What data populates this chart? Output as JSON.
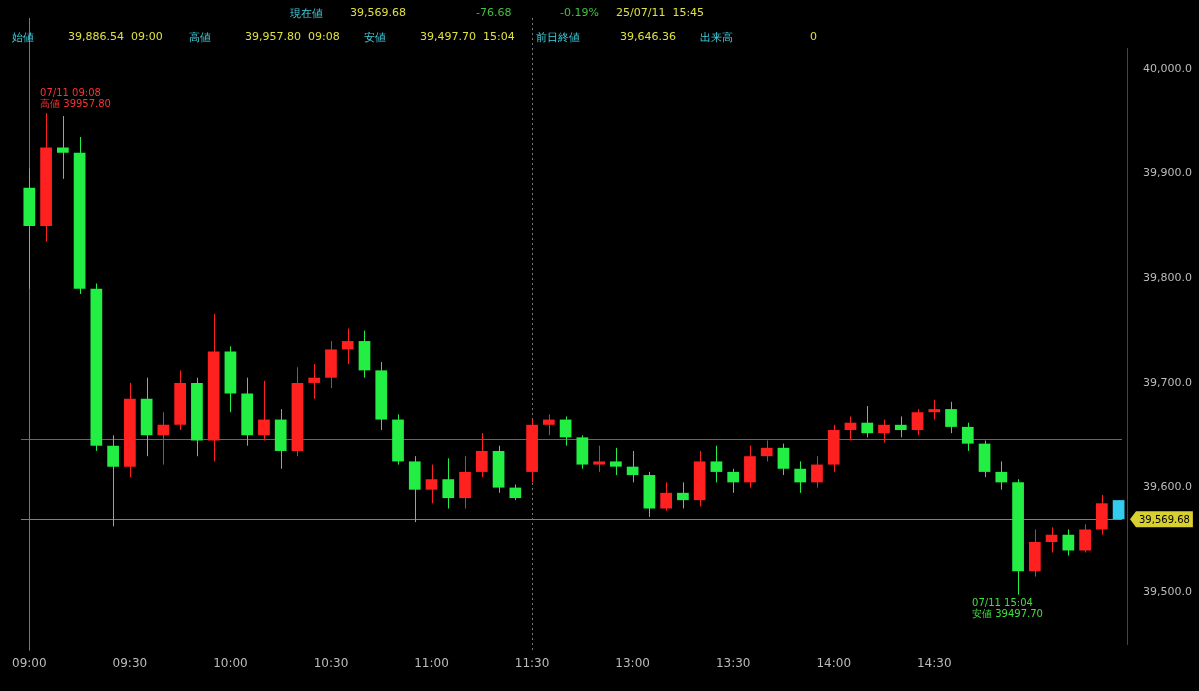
{
  "chart_data": {
    "type": "candlestick",
    "categories": [
      "09:00",
      null,
      null,
      null,
      null,
      null,
      "09:30",
      null,
      null,
      null,
      null,
      null,
      "10:00",
      null,
      null,
      null,
      null,
      null,
      "10:30",
      null,
      null,
      null,
      null,
      null,
      "11:00",
      null,
      null,
      null,
      null,
      null,
      "11:30",
      null,
      null,
      null,
      null,
      null,
      "13:00",
      null,
      null,
      null,
      null,
      null,
      "13:30",
      null,
      null,
      null,
      null,
      null,
      "14:00",
      null,
      null,
      null,
      null,
      null,
      "14:30",
      null,
      null,
      null,
      null,
      null,
      null,
      null,
      null,
      null,
      null,
      null
    ],
    "ohlc": [
      [
        39886.54,
        39905,
        39790,
        39850
      ],
      [
        39850,
        39957.8,
        39835,
        39925
      ],
      [
        39925,
        39955,
        39895,
        39920
      ],
      [
        39920,
        39935,
        39785,
        39790
      ],
      [
        39790,
        39795,
        39635,
        39640
      ],
      [
        39640,
        39650,
        39563,
        39620
      ],
      [
        39620,
        39700,
        39610,
        39685
      ],
      [
        39685,
        39705,
        39630,
        39650
      ],
      [
        39650,
        39672,
        39622,
        39660
      ],
      [
        39660,
        39712,
        39655,
        39700
      ],
      [
        39700,
        39705,
        39630,
        39645
      ],
      [
        39645,
        39766,
        39625,
        39730
      ],
      [
        39730,
        39735,
        39672,
        39690
      ],
      [
        39690,
        39705,
        39640,
        39650
      ],
      [
        39650,
        39702,
        39645,
        39665
      ],
      [
        39665,
        39675,
        39618,
        39635
      ],
      [
        39635,
        39715,
        39630,
        39700
      ],
      [
        39700,
        39718,
        39685,
        39705
      ],
      [
        39705,
        39740,
        39695,
        39732
      ],
      [
        39732,
        39752,
        39718,
        39740
      ],
      [
        39740,
        39750,
        39705,
        39712
      ],
      [
        39712,
        39720,
        39655,
        39665
      ],
      [
        39665,
        39670,
        39622,
        39625
      ],
      [
        39625,
        39630,
        39567,
        39598
      ],
      [
        39598,
        39622,
        39585,
        39608
      ],
      [
        39608,
        39628,
        39580,
        39590
      ],
      [
        39590,
        39630,
        39580,
        39615
      ],
      [
        39615,
        39652,
        39610,
        39635
      ],
      [
        39635,
        39640,
        39595,
        39600
      ],
      [
        39600,
        39603,
        39588,
        39590
      ],
      [
        39615,
        39665,
        39605,
        39660
      ],
      [
        39660,
        39670,
        39650,
        39665
      ],
      [
        39665,
        39668,
        39640,
        39648
      ],
      [
        39648,
        39650,
        39618,
        39622
      ],
      [
        39622,
        39640,
        39615,
        39625
      ],
      [
        39625,
        39638,
        39612,
        39620
      ],
      [
        39620,
        39635,
        39605,
        39612
      ],
      [
        39612,
        39615,
        39572,
        39580
      ],
      [
        39580,
        39605,
        39578,
        39595
      ],
      [
        39595,
        39605,
        39580,
        39588
      ],
      [
        39588,
        39635,
        39582,
        39625
      ],
      [
        39625,
        39640,
        39605,
        39615
      ],
      [
        39615,
        39618,
        39595,
        39605
      ],
      [
        39605,
        39640,
        39600,
        39630
      ],
      [
        39630,
        39645,
        39625,
        39638
      ],
      [
        39638,
        39642,
        39612,
        39618
      ],
      [
        39618,
        39625,
        39595,
        39605
      ],
      [
        39605,
        39630,
        39600,
        39622
      ],
      [
        39622,
        39660,
        39615,
        39655
      ],
      [
        39655,
        39668,
        39645,
        39662
      ],
      [
        39662,
        39678,
        39648,
        39652
      ],
      [
        39652,
        39665,
        39643,
        39660
      ],
      [
        39660,
        39668,
        39648,
        39655
      ],
      [
        39655,
        39675,
        39650,
        39672
      ],
      [
        39672,
        39684,
        39665,
        39675
      ],
      [
        39675,
        39682,
        39652,
        39658
      ],
      [
        39658,
        39662,
        39635,
        39642
      ],
      [
        39642,
        39645,
        39610,
        39615
      ],
      [
        39615,
        39625,
        39598,
        39605
      ],
      [
        39605,
        39608,
        39497.7,
        39520
      ],
      [
        39520,
        39560,
        39515,
        39548
      ],
      [
        39548,
        39562,
        39538,
        39555
      ],
      [
        39555,
        39560,
        39535,
        39540
      ],
      [
        39540,
        39565,
        39538,
        39560
      ],
      [
        39560,
        39593,
        39555,
        39585
      ],
      [
        39588,
        39588,
        39569.68,
        39569.68
      ]
    ],
    "colors": [
      "#22ee44",
      "#ff2020",
      "#22ee44",
      "#22ee44",
      "#22ee44",
      "#22ee44",
      "#ff2020",
      "#22ee44",
      "#ff2020",
      "#ff2020",
      "#22ee44",
      "#ff2020",
      "#22ee44",
      "#22ee44",
      "#ff2020",
      "#22ee44",
      "#ff2020",
      "#ff2020",
      "#ff2020",
      "#ff2020",
      "#22ee44",
      "#22ee44",
      "#22ee44",
      "#22ee44",
      "#ff2020",
      "#22ee44",
      "#ff2020",
      "#ff2020",
      "#22ee44",
      "#22ee44",
      "#ff2020",
      "#ff2020",
      "#22ee44",
      "#22ee44",
      "#ff2020",
      "#22ee44",
      "#22ee44",
      "#22ee44",
      "#ff2020",
      "#22ee44",
      "#ff2020",
      "#22ee44",
      "#22ee44",
      "#ff2020",
      "#ff2020",
      "#22ee44",
      "#22ee44",
      "#ff2020",
      "#ff2020",
      "#ff2020",
      "#22ee44",
      "#ff2020",
      "#22ee44",
      "#ff2020",
      "#ff2020",
      "#22ee44",
      "#22ee44",
      "#22ee44",
      "#22ee44",
      "#22ee44",
      "#ff2020",
      "#ff2020",
      "#22ee44",
      "#ff2020",
      "#ff2020",
      "#33ccee"
    ],
    "ylim": [
      39450,
      40020
    ],
    "yticks": [
      {
        "value": 39500,
        "label": "39,500.0"
      },
      {
        "value": 39600,
        "label": "39,600.0"
      },
      {
        "value": 39700,
        "label": "39,700.0"
      },
      {
        "value": 39800,
        "label": "39,800.0"
      },
      {
        "value": 39900,
        "label": "39,900.0"
      },
      {
        "value": 40000,
        "label": "40,000.0"
      }
    ],
    "grid": false,
    "legend": false,
    "ref_lines": [
      {
        "axis": "y",
        "value": 39646.36,
        "color": "#b030c0",
        "line_style": "solid"
      },
      {
        "axis": "y",
        "value": 39569.68,
        "label": "39,569.68",
        "color": "#8a8a30",
        "line_style": "solid"
      },
      {
        "axis": "x",
        "value": "11:30",
        "color": "#777777",
        "line_style": "dotted"
      },
      {
        "axis": "x",
        "value": "09:00",
        "color": "#777777",
        "line_style": "solid"
      }
    ],
    "annotations": [
      "現在値",
      "39,569.68",
      "-76.68",
      "-0.19%",
      "25/07/11  15:45",
      "始値",
      "39,886.54  09:00",
      "高値",
      "39,957.80  09:08",
      "安値",
      "39,497.70  15:04",
      "前日終値",
      "39,646.36",
      "出来高",
      "0",
      "07/11 09:08\n高値 39957.80",
      "07/11 15:04\n安値 39497.70"
    ]
  }
}
